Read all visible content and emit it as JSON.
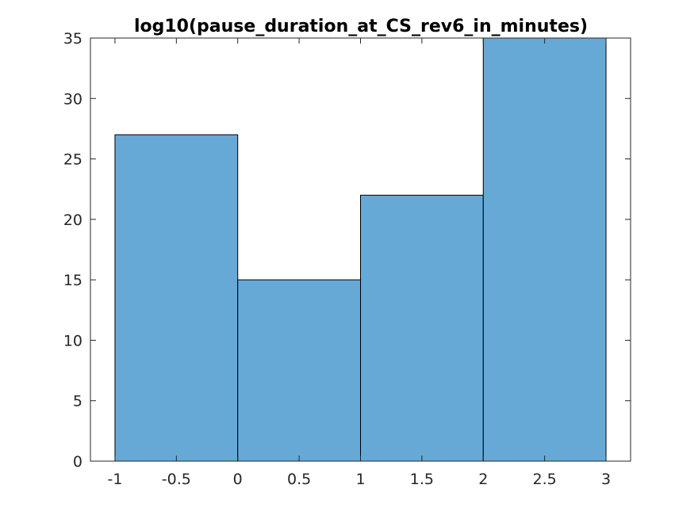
{
  "chart_data": {
    "type": "bar",
    "title": "log10(pause_duration_at_CS_rev6_in_minutes)",
    "xlabel": "",
    "ylabel": "",
    "bin_edges": [
      -1,
      0,
      1,
      2,
      3
    ],
    "values": [
      27,
      15,
      22,
      35
    ],
    "xlim": [
      -1.2,
      3.2
    ],
    "ylim": [
      0,
      35
    ],
    "xticks": [
      -1,
      -0.5,
      0,
      0.5,
      1,
      1.5,
      2,
      2.5,
      3
    ],
    "xtick_labels": [
      "-1",
      "-0.5",
      "0",
      "0.5",
      "1",
      "1.5",
      "2",
      "2.5",
      "3"
    ],
    "yticks": [
      0,
      5,
      10,
      15,
      20,
      25,
      30,
      35
    ],
    "ytick_labels": [
      "0",
      "5",
      "10",
      "15",
      "20",
      "25",
      "30",
      "35"
    ],
    "bar_color": "#66a9d7",
    "grid": false,
    "legend": "none"
  }
}
